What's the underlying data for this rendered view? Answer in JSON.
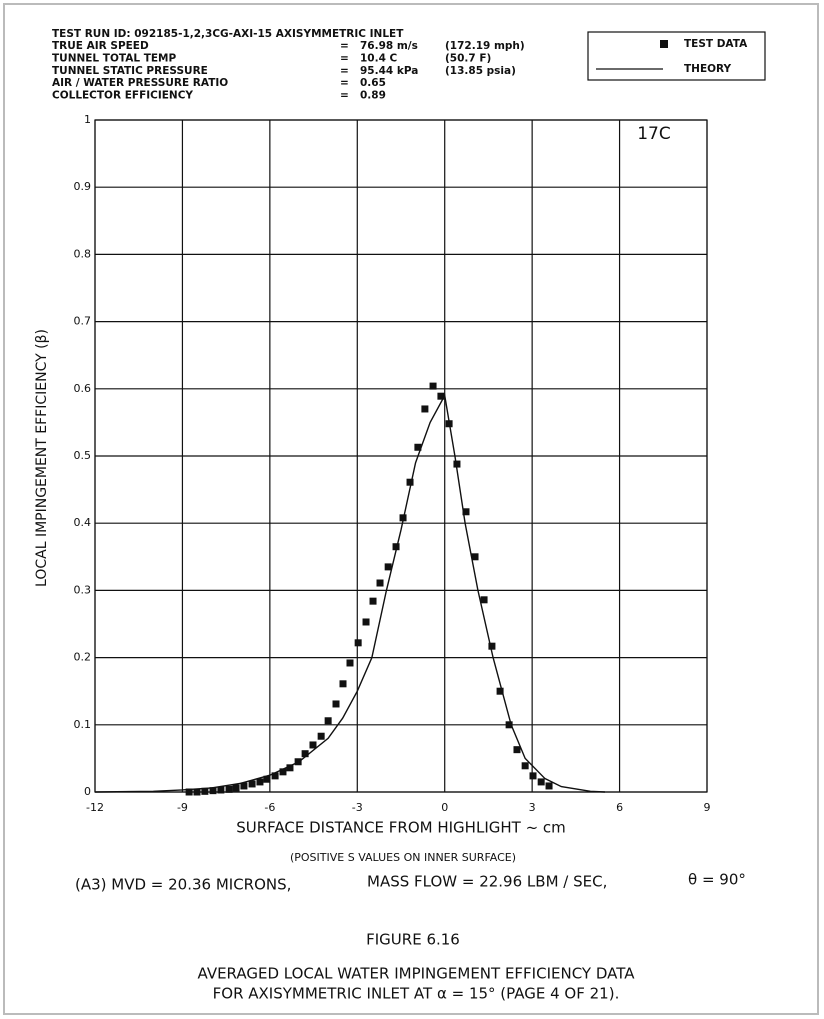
{
  "chart_data": {
    "type": "scatter",
    "header": {
      "title": "TEST RUN ID:  092185-1,2,3CG-AXI-15   AXISYMMETRIC INLET",
      "rows": [
        [
          "TRUE AIR SPEED",
          "=",
          "76.98 m/s",
          "(172.19 mph)"
        ],
        [
          "TUNNEL TOTAL TEMP",
          "=",
          "10.4 C",
          "(50.7 F)"
        ],
        [
          "TUNNEL STATIC PRESSURE",
          "=",
          "95.44 kPa",
          "(13.85 psia)"
        ],
        [
          "AIR / WATER PRESSURE RATIO",
          "=",
          "0.65"
        ],
        [
          "COLLECTOR EFFICIENCY",
          "=",
          "0.89"
        ]
      ]
    },
    "panel_label": "17C",
    "xlabel": "SURFACE DISTANCE FROM HIGHLIGHT ~ cm",
    "ylabel": "LOCAL IMPINGEMENT EFFICIENCY (β)",
    "note": "(POSITIVE S VALUES ON INNER SURFACE)",
    "conditions": [
      "(A3)   MVD = 20.36 MICRONS,",
      "MASS FLOW = 22.96 LBM / SEC,",
      "θ  =  90°"
    ],
    "figure": "FIGURE 6.16",
    "caption": [
      "AVERAGED LOCAL WATER IMPINGEMENT EFFICIENCY DATA",
      "FOR AXISYMMETRIC INLET AT α = 15° (PAGE 4 OF 21)."
    ],
    "xlim": [
      -12,
      9
    ],
    "xticks": [
      -12,
      -9,
      -6,
      -3,
      0,
      3,
      6,
      9
    ],
    "ylim": [
      0,
      1
    ],
    "yticks": [
      0,
      0.1,
      0.2,
      0.3,
      0.4,
      0.5,
      0.6,
      0.7,
      0.8,
      0.9,
      1
    ],
    "grid": true,
    "legend": "upper right",
    "series": [
      {
        "name": "TEST DATA",
        "type": "scatter",
        "color": "#111111",
        "x": [
          -8.77,
          -8.5,
          -8.23,
          -7.95,
          -7.68,
          -7.4,
          -7.16,
          -6.89,
          -6.61,
          -6.34,
          -6.1,
          -5.82,
          -5.55,
          -5.31,
          -5.03,
          -4.79,
          -4.52,
          -4.24,
          -4.0,
          -3.73,
          -3.49,
          -3.25,
          -2.97,
          -2.7,
          -2.46,
          -2.22,
          -1.94,
          -1.67,
          -1.43,
          -1.19,
          -0.92,
          -0.68,
          -0.4,
          -0.13,
          0.15,
          0.42,
          0.73,
          1.04,
          1.35,
          1.62,
          1.9,
          2.21,
          2.48,
          2.76,
          3.03,
          3.31,
          3.58
        ],
        "values": [
          0.0,
          0.0,
          0.001,
          0.002,
          0.003,
          0.004,
          0.006,
          0.009,
          0.012,
          0.015,
          0.019,
          0.024,
          0.03,
          0.036,
          0.045,
          0.057,
          0.07,
          0.083,
          0.106,
          0.131,
          0.161,
          0.192,
          0.222,
          0.253,
          0.284,
          0.311,
          0.335,
          0.365,
          0.408,
          0.461,
          0.513,
          0.57,
          0.604,
          0.589,
          0.548,
          0.488,
          0.417,
          0.35,
          0.286,
          0.217,
          0.15,
          0.1,
          0.063,
          0.039,
          0.024,
          0.015,
          0.009
        ]
      },
      {
        "name": "THEORY",
        "type": "line",
        "color": "#111111",
        "x": [
          -12,
          -10,
          -9,
          -8,
          -7,
          -6,
          -5,
          -4,
          -3.5,
          -3,
          -2.5,
          -2,
          -1.5,
          -1,
          -0.5,
          0,
          0.35,
          0.7,
          1.14,
          1.66,
          2.28,
          2.76,
          3.44,
          4,
          5,
          5.5
        ],
        "values": [
          0,
          0.001,
          0.003,
          0.006,
          0.013,
          0.025,
          0.045,
          0.08,
          0.11,
          0.15,
          0.2,
          0.3,
          0.39,
          0.49,
          0.55,
          0.59,
          0.5,
          0.4,
          0.3,
          0.2,
          0.1,
          0.05,
          0.02,
          0.008,
          0.001,
          0
        ]
      }
    ]
  }
}
